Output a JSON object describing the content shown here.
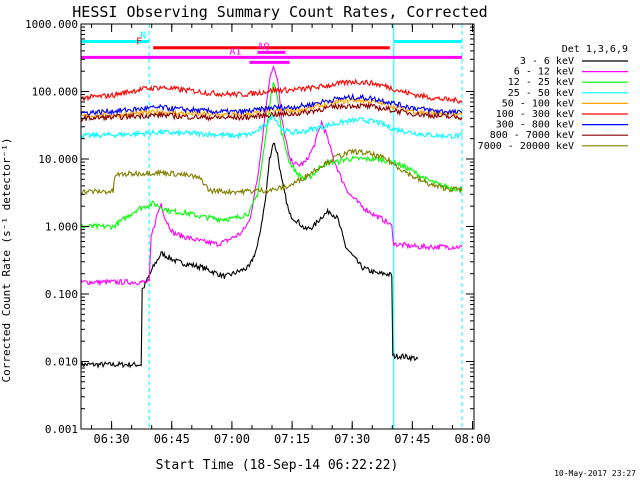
{
  "chart_data": {
    "type": "line",
    "title": "HESSI Observing Summary Count Rates, Corrected",
    "xlabel": "Start Time (18-Sep-14 06:22:22)",
    "ylabel": "Corrected Count Rate (s⁻¹ detector⁻¹)",
    "yscale": "log",
    "ylim": [
      0.001,
      1000
    ],
    "xlim_minutes": [
      0,
      98
    ],
    "x_ticks": [
      "06:30",
      "06:45",
      "07:00",
      "07:15",
      "07:30",
      "07:45",
      "08:00"
    ],
    "y_ticks": [
      "0.001",
      "0.010",
      "0.100",
      "1.000",
      "10.000",
      "100.000",
      "1000.000"
    ],
    "legend_title": "Det 1,3,6,9",
    "legend_position": "right",
    "series": [
      {
        "name": "3 - 6 keV",
        "color": "#000000",
        "points": [
          [
            0,
            0.009
          ],
          [
            15,
            0.009
          ],
          [
            15.5,
            0.12
          ],
          [
            18,
            0.25
          ],
          [
            20,
            0.4
          ],
          [
            24,
            0.3
          ],
          [
            30,
            0.25
          ],
          [
            36,
            0.18
          ],
          [
            42,
            0.25
          ],
          [
            44,
            0.5
          ],
          [
            46,
            2.5
          ],
          [
            47,
            10
          ],
          [
            48,
            18
          ],
          [
            49,
            12
          ],
          [
            50,
            5
          ],
          [
            52,
            1.5
          ],
          [
            54,
            1.2
          ],
          [
            56,
            0.9
          ],
          [
            58,
            1.0
          ],
          [
            60,
            1.4
          ],
          [
            62,
            1.7
          ],
          [
            64,
            1.3
          ],
          [
            66,
            0.5
          ],
          [
            68,
            0.35
          ],
          [
            70,
            0.25
          ],
          [
            72,
            0.22
          ],
          [
            74,
            0.2
          ],
          [
            76,
            0.2
          ],
          [
            77.5,
            0.19
          ],
          [
            78,
            0.012
          ],
          [
            80,
            0.012
          ],
          [
            84,
            0.011
          ]
        ]
      },
      {
        "name": "6 - 12 keV",
        "color": "#ff00ff",
        "points": [
          [
            0,
            0.15
          ],
          [
            17,
            0.15
          ],
          [
            17.5,
            0.7
          ],
          [
            19,
            1.5
          ],
          [
            20,
            2.2
          ],
          [
            21,
            1.3
          ],
          [
            23,
            0.8
          ],
          [
            26,
            0.7
          ],
          [
            30,
            0.6
          ],
          [
            34,
            0.55
          ],
          [
            36,
            0.6
          ],
          [
            40,
            0.8
          ],
          [
            42,
            1.2
          ],
          [
            44,
            5
          ],
          [
            46,
            50
          ],
          [
            47,
            150
          ],
          [
            48,
            250
          ],
          [
            49,
            150
          ],
          [
            50,
            40
          ],
          [
            52,
            10
          ],
          [
            54,
            8
          ],
          [
            56,
            9
          ],
          [
            58,
            15
          ],
          [
            60,
            35
          ],
          [
            61,
            25
          ],
          [
            63,
            10
          ],
          [
            65,
            5
          ],
          [
            67,
            3
          ],
          [
            70,
            2
          ],
          [
            73,
            1.5
          ],
          [
            76,
            1.2
          ],
          [
            77.5,
            1.0
          ],
          [
            78,
            0.55
          ],
          [
            84,
            0.5
          ],
          [
            95,
            0.5
          ]
        ]
      },
      {
        "name": "12 - 25 keV",
        "color": "#00ff00",
        "points": [
          [
            0,
            1.0
          ],
          [
            8,
            1.0
          ],
          [
            10,
            1.2
          ],
          [
            14,
            1.8
          ],
          [
            18,
            2.2
          ],
          [
            22,
            1.7
          ],
          [
            26,
            1.6
          ],
          [
            30,
            1.4
          ],
          [
            34,
            1.3
          ],
          [
            38,
            1.3
          ],
          [
            42,
            1.6
          ],
          [
            44,
            3
          ],
          [
            46,
            20
          ],
          [
            47,
            60
          ],
          [
            48,
            150
          ],
          [
            49,
            80
          ],
          [
            50,
            25
          ],
          [
            52,
            9
          ],
          [
            54,
            6
          ],
          [
            56,
            5
          ],
          [
            58,
            6
          ],
          [
            60,
            8
          ],
          [
            62,
            9
          ],
          [
            64,
            9
          ],
          [
            66,
            10
          ],
          [
            70,
            10
          ],
          [
            74,
            10
          ],
          [
            78,
            9
          ],
          [
            82,
            7
          ],
          [
            86,
            5
          ],
          [
            90,
            4
          ],
          [
            95,
            3.5
          ]
        ]
      },
      {
        "name": "25 - 50 keV",
        "color": "#00ffff",
        "points": [
          [
            0,
            22
          ],
          [
            10,
            23
          ],
          [
            16,
            24
          ],
          [
            20,
            25
          ],
          [
            24,
            24
          ],
          [
            28,
            24
          ],
          [
            34,
            23
          ],
          [
            38,
            22
          ],
          [
            42,
            23
          ],
          [
            44,
            26
          ],
          [
            46,
            32
          ],
          [
            48,
            45
          ],
          [
            50,
            28
          ],
          [
            52,
            25
          ],
          [
            54,
            25
          ],
          [
            56,
            26
          ],
          [
            58,
            28
          ],
          [
            62,
            32
          ],
          [
            66,
            36
          ],
          [
            70,
            38
          ],
          [
            74,
            35
          ],
          [
            78,
            28
          ],
          [
            82,
            25
          ],
          [
            86,
            23
          ],
          [
            90,
            22
          ],
          [
            95,
            22
          ]
        ]
      },
      {
        "name": "50 - 100 keV",
        "color": "#ffa500",
        "points": [
          [
            0,
            43
          ],
          [
            10,
            45
          ],
          [
            16,
            48
          ],
          [
            20,
            50
          ],
          [
            24,
            48
          ],
          [
            28,
            47
          ],
          [
            34,
            45
          ],
          [
            40,
            45
          ],
          [
            44,
            48
          ],
          [
            48,
            52
          ],
          [
            52,
            52
          ],
          [
            56,
            55
          ],
          [
            60,
            62
          ],
          [
            64,
            70
          ],
          [
            68,
            75
          ],
          [
            72,
            72
          ],
          [
            76,
            65
          ],
          [
            80,
            55
          ],
          [
            84,
            50
          ],
          [
            88,
            48
          ],
          [
            92,
            46
          ],
          [
            95,
            45
          ]
        ]
      },
      {
        "name": "100 - 300 keV",
        "color": "#ff0000",
        "points": [
          [
            0,
            80
          ],
          [
            8,
            88
          ],
          [
            12,
            100
          ],
          [
            16,
            110
          ],
          [
            20,
            115
          ],
          [
            24,
            108
          ],
          [
            28,
            102
          ],
          [
            32,
            95
          ],
          [
            36,
            92
          ],
          [
            40,
            90
          ],
          [
            44,
            95
          ],
          [
            48,
            105
          ],
          [
            52,
            105
          ],
          [
            56,
            110
          ],
          [
            60,
            118
          ],
          [
            64,
            130
          ],
          [
            68,
            140
          ],
          [
            72,
            135
          ],
          [
            76,
            120
          ],
          [
            80,
            100
          ],
          [
            84,
            88
          ],
          [
            88,
            80
          ],
          [
            92,
            75
          ],
          [
            95,
            73
          ]
        ]
      },
      {
        "name": "300 - 800 keV",
        "color": "#0000ff",
        "points": [
          [
            0,
            48
          ],
          [
            10,
            52
          ],
          [
            16,
            56
          ],
          [
            20,
            58
          ],
          [
            24,
            55
          ],
          [
            28,
            53
          ],
          [
            34,
            50
          ],
          [
            40,
            50
          ],
          [
            44,
            53
          ],
          [
            48,
            58
          ],
          [
            52,
            58
          ],
          [
            56,
            62
          ],
          [
            60,
            70
          ],
          [
            64,
            78
          ],
          [
            68,
            82
          ],
          [
            72,
            80
          ],
          [
            76,
            72
          ],
          [
            80,
            62
          ],
          [
            84,
            56
          ],
          [
            88,
            52
          ],
          [
            92,
            50
          ],
          [
            95,
            48
          ]
        ]
      },
      {
        "name": "800 - 7000 keV",
        "color": "#8b0000",
        "points": [
          [
            0,
            40
          ],
          [
            10,
            42
          ],
          [
            16,
            44
          ],
          [
            20,
            45
          ],
          [
            24,
            43
          ],
          [
            28,
            42
          ],
          [
            34,
            41
          ],
          [
            40,
            41
          ],
          [
            44,
            43
          ],
          [
            48,
            46
          ],
          [
            52,
            46
          ],
          [
            56,
            49
          ],
          [
            60,
            55
          ],
          [
            64,
            60
          ],
          [
            68,
            62
          ],
          [
            72,
            60
          ],
          [
            76,
            55
          ],
          [
            80,
            50
          ],
          [
            84,
            46
          ],
          [
            88,
            44
          ],
          [
            92,
            42
          ],
          [
            95,
            41
          ]
        ]
      },
      {
        "name": "7000 - 20000 keV",
        "color": "#808000",
        "points": [
          [
            0,
            3.3
          ],
          [
            8,
            3.3
          ],
          [
            8.5,
            5.8
          ],
          [
            12,
            6.0
          ],
          [
            16,
            6.2
          ],
          [
            20,
            6.3
          ],
          [
            24,
            6.0
          ],
          [
            28,
            5.5
          ],
          [
            30,
            5.0
          ],
          [
            32,
            3.4
          ],
          [
            36,
            3.3
          ],
          [
            40,
            3.3
          ],
          [
            44,
            3.4
          ],
          [
            48,
            3.5
          ],
          [
            52,
            4.0
          ],
          [
            56,
            5.5
          ],
          [
            60,
            8
          ],
          [
            64,
            11
          ],
          [
            68,
            13
          ],
          [
            72,
            12
          ],
          [
            76,
            10
          ],
          [
            80,
            7
          ],
          [
            84,
            5
          ],
          [
            88,
            4
          ],
          [
            92,
            3.6
          ],
          [
            95,
            3.5
          ]
        ]
      }
    ],
    "vertical_lines": [
      {
        "minute": 0,
        "color": "#00ffff",
        "style": "solid"
      },
      {
        "minute": 17,
        "color": "#00ffff",
        "style": "dashed"
      },
      {
        "minute": 78,
        "color": "#00ffff",
        "style": "solid"
      },
      {
        "minute": 95,
        "color": "#00ffff",
        "style": "dashed"
      }
    ],
    "flag_bars": [
      {
        "label": "N",
        "color": "#00ffff",
        "y": 550,
        "segments": [
          [
            0,
            17
          ],
          [
            78,
            95
          ]
        ],
        "label_at": 17
      },
      {
        "label": "F",
        "color": "#ff0000",
        "y": 445,
        "segments": [
          [
            18,
            77
          ]
        ],
        "label_at": 16
      },
      {
        "label": "A1",
        "color": "#ff00ff",
        "y": 320,
        "segments": [
          [
            0,
            95
          ]
        ],
        "label_at": 40
      },
      {
        "label": "AQ",
        "color": "#ff00ff",
        "y": 380,
        "segments": [
          [
            44,
            51
          ]
        ],
        "label_at": 47
      },
      {
        "label": "",
        "color": "#ff00ff",
        "y": 270,
        "segments": [
          [
            42,
            52
          ]
        ],
        "label_at": 0
      }
    ]
  },
  "footer": {
    "date": "10-May-2017 23:27"
  }
}
